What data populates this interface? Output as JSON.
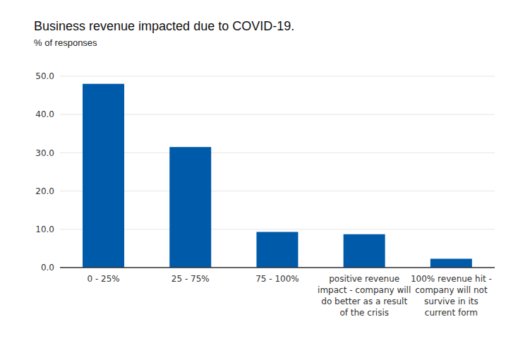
{
  "chart_data": {
    "type": "bar",
    "title": "Business revenue impacted due to COVID-19.",
    "subtitle": "% of responses",
    "categories": [
      "0 - 25%",
      "25 - 75%",
      "75 - 100%",
      "positive revenue impact - company will do better as a result of the crisis",
      "100% revenue hit - company will not survive in its current form"
    ],
    "values": [
      48.0,
      31.5,
      9.3,
      8.7,
      2.3
    ],
    "color": "#005aaa",
    "ylim": [
      0,
      50
    ],
    "yticks": [
      {
        "value": 0,
        "label": "0.0"
      },
      {
        "value": 10,
        "label": "10.0"
      },
      {
        "value": 20,
        "label": "20.0"
      },
      {
        "value": 30,
        "label": "30.0"
      },
      {
        "value": 40,
        "label": "40.0"
      },
      {
        "value": 50,
        "label": "50.0"
      }
    ],
    "grid": true
  }
}
